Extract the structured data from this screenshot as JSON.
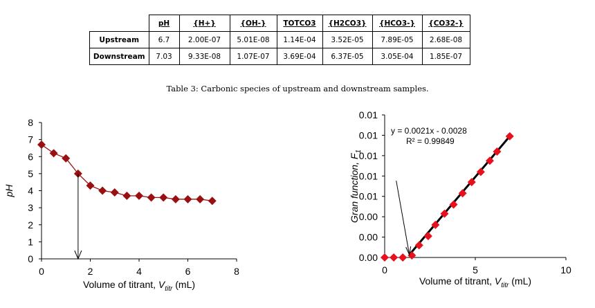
{
  "table": {
    "headers": [
      "",
      "pH",
      "{H+}",
      "{OH-}",
      "TOTCO3",
      "{H2CO3}",
      "{HCO3-}",
      "{CO32-}"
    ],
    "rows": [
      [
        "Upstream",
        "6.7",
        "2.00E-07",
        "5.01E-08",
        "1.14E-04",
        "3.52E-05",
        "7.89E-05",
        "2.68E-08"
      ],
      [
        "Downstream",
        "7.03",
        "9.33E-08",
        "1.07E-07",
        "3.69E-04",
        "6.37E-05",
        "3.05E-04",
        "1.85E-07"
      ]
    ]
  },
  "caption": "Table 3: Carbonic species of upstream and downstream samples.",
  "chart_data": [
    {
      "type": "line",
      "ylabel": "pH",
      "xlabel_prefix": "Volume  of titrant, ",
      "xlabel_var": "V",
      "xlabel_sub": "titr",
      "xlabel_suffix": " (mL)",
      "xlim": [
        0,
        8
      ],
      "ylim": [
        0,
        8
      ],
      "xticks": [
        "0",
        "2",
        "4",
        "6",
        "8"
      ],
      "yticks": [
        "0",
        "1",
        "2",
        "3",
        "4",
        "5",
        "6",
        "7",
        "8"
      ],
      "color": "#9a1010",
      "x": [
        0,
        0.5,
        1,
        1.5,
        2,
        2.5,
        3,
        3.5,
        4,
        4.5,
        5,
        5.5,
        6,
        6.5,
        7
      ],
      "y": [
        6.7,
        6.2,
        5.9,
        5.0,
        4.3,
        4.0,
        3.9,
        3.7,
        3.7,
        3.6,
        3.6,
        3.5,
        3.5,
        3.5,
        3.4
      ],
      "annotation_arrow": {
        "x": 1.5,
        "from_y": 5.0,
        "to_y": 0
      }
    },
    {
      "type": "scatter",
      "ylabel": "Gran function, F",
      "ylabel_sub": "1",
      "xlabel_prefix": "Volume  of titrant, ",
      "xlabel_var": "V",
      "xlabel_sub": "titr",
      "xlabel_suffix": " (mL)",
      "xlim": [
        0,
        10
      ],
      "ylim": [
        0,
        0.014
      ],
      "xticks": [
        "0",
        "5",
        "10"
      ],
      "yticks": [
        "0.00",
        "0.00",
        "0.00",
        "0.01",
        "0.01",
        "0.01",
        "0.01",
        "0.01"
      ],
      "color": "#e8101c",
      "x": [
        0,
        0.5,
        1,
        1.5,
        1.9,
        2.4,
        2.8,
        3.3,
        3.8,
        4.3,
        4.8,
        5.3,
        5.8,
        6.2,
        6.9
      ],
      "y": [
        0,
        0,
        0,
        0.0002,
        0.0012,
        0.0021,
        0.0032,
        0.0043,
        0.0052,
        0.0063,
        0.0074,
        0.0084,
        0.0095,
        0.0104,
        0.0119
      ],
      "fit_line": {
        "x": [
          1.4,
          6.9
        ]
      },
      "annotation_arrow": {
        "from_x": 1.4,
        "from_y": 0.0072,
        "to_x": 1.4,
        "to_y": 0
      },
      "equation": "y = 0.0021x - 0.0028",
      "r2": "R² = 0.99849"
    }
  ]
}
